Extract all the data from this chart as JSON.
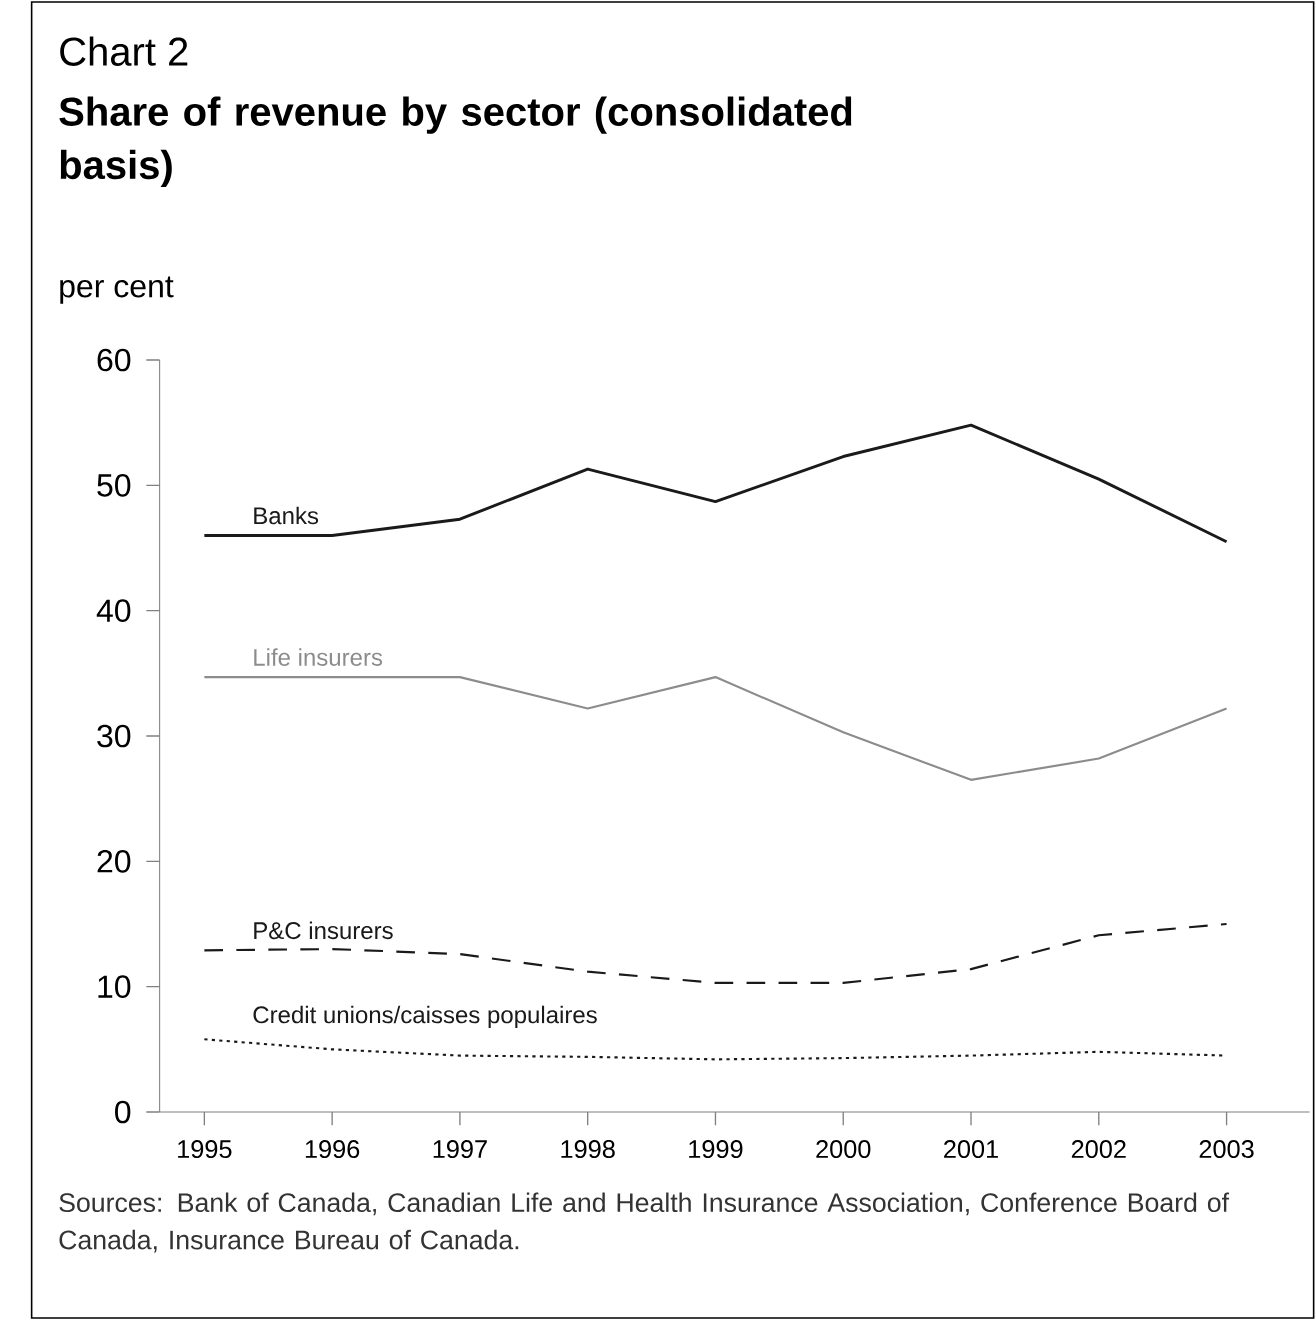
{
  "chart_data": {
    "type": "line",
    "title": "Chart 2",
    "subtitle": "Share of revenue by sector (consolidated basis)",
    "ylabel": "per cent",
    "x": [
      1995,
      1996,
      1997,
      1998,
      1999,
      2000,
      2001,
      2002,
      2003
    ],
    "series": [
      {
        "name": "Banks",
        "color": "#1a1a1a",
        "line_style": "solid",
        "values": [
          46,
          46,
          47.3,
          51.3,
          48.7,
          52.3,
          54.8,
          50.5,
          45.5
        ]
      },
      {
        "name": "Life insurers",
        "color": "#8c8c8c",
        "line_style": "solid",
        "values": [
          34.7,
          34.7,
          34.7,
          32.2,
          34.7,
          30.3,
          26.5,
          28.2,
          32.2
        ]
      },
      {
        "name": "P&C insurers",
        "color": "#1a1a1a",
        "line_style": "dashed",
        "values": [
          12.9,
          13,
          12.6,
          11.2,
          10.3,
          10.3,
          11.4,
          14.1,
          15
        ]
      },
      {
        "name": "Credit unions/caisses populaires",
        "color": "#1a1a1a",
        "line_style": "dotted",
        "values": [
          5.8,
          5,
          4.5,
          4.4,
          4.2,
          4.3,
          4.5,
          4.8,
          4.5
        ]
      }
    ],
    "xlim": [
      1994.65,
      2003.65
    ],
    "ylim": [
      0,
      60
    ],
    "xticks": [
      1995,
      1996,
      1997,
      1998,
      1999,
      2000,
      2001,
      2002,
      2003
    ],
    "yticks": [
      0,
      10,
      20,
      30,
      40,
      50,
      60
    ],
    "grid": false,
    "legend": false,
    "marker": "none",
    "annotations": [
      "Sources: Bank of Canada, Canadian Life and Health Insurance Association, Conference Board of Canada, Insurance Bureau of Canada."
    ]
  }
}
